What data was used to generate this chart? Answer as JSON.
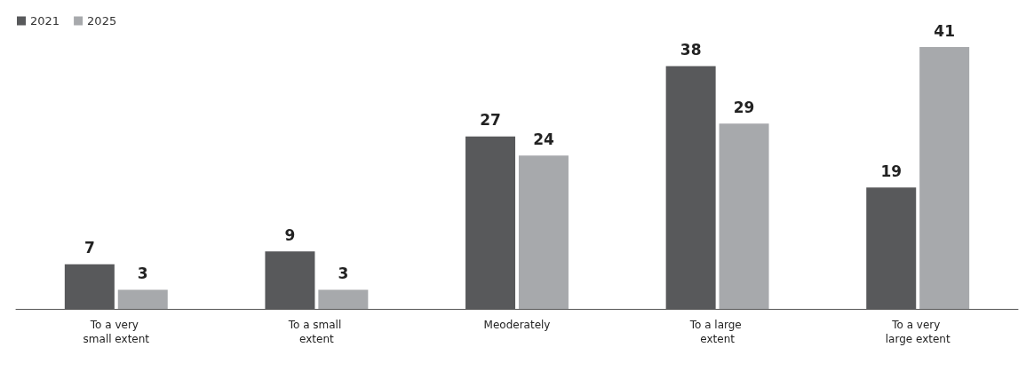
{
  "chart_data": {
    "type": "bar",
    "categories": [
      "To a very small extent",
      "To a small extent",
      "Meoderately",
      "To a large extent",
      "To a very large extent"
    ],
    "series": [
      {
        "name": "2021",
        "color": "#58595b",
        "values": [
          7,
          9,
          27,
          38,
          19
        ]
      },
      {
        "name": "2025",
        "color": "#a7a9ac",
        "values": [
          3,
          3,
          24,
          29,
          41
        ]
      }
    ],
    "data_labels": true,
    "legend": "top left",
    "grid": false
  }
}
